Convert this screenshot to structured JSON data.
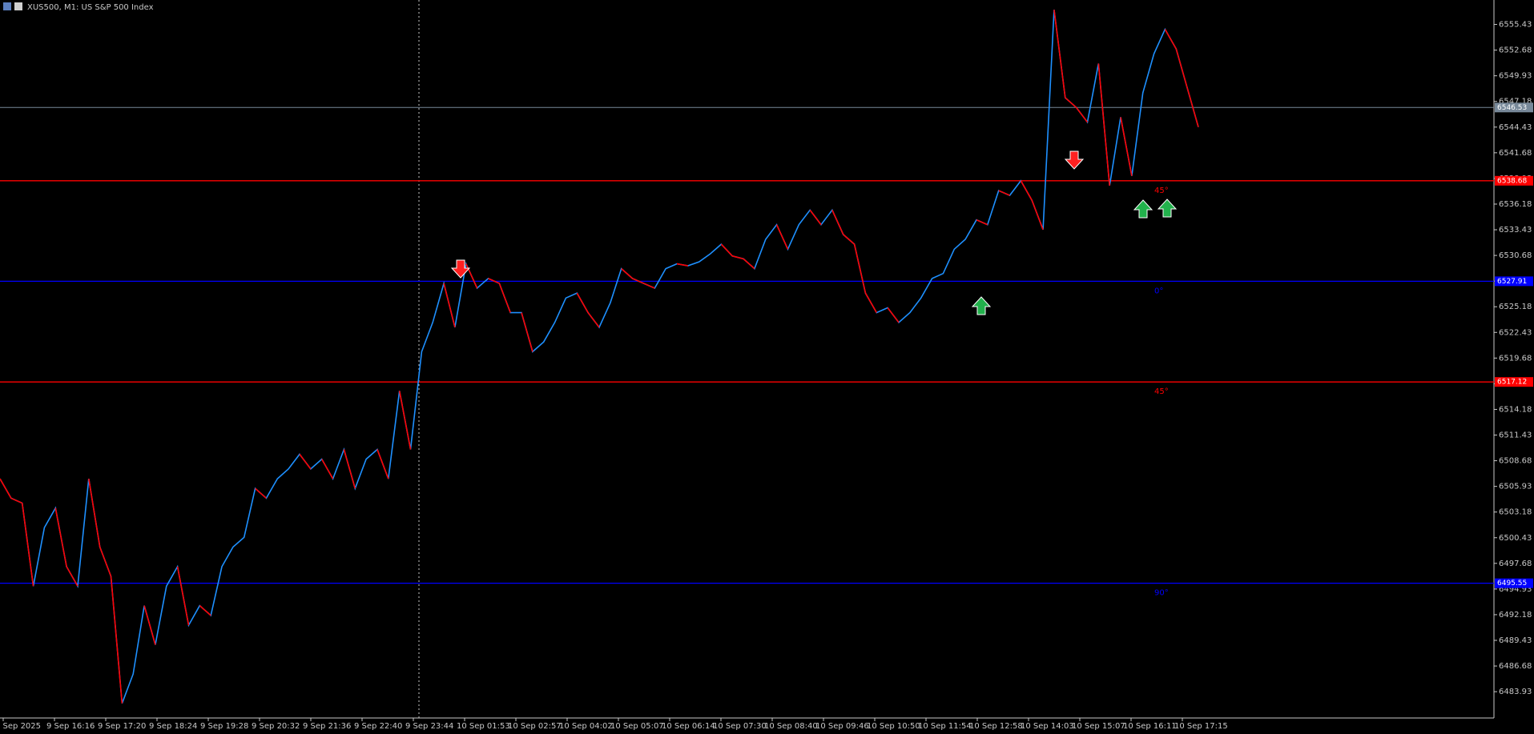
{
  "chart_data": {
    "type": "line",
    "title": "XUS500, M1:  US S&P 500 Index",
    "color": "#1e90ff",
    "down_color": "#ff0000",
    "values": [
      6506.75,
      6504.66,
      6504.14,
      6495.24,
      6501.52,
      6503.61,
      6497.33,
      6495.24,
      6506.75,
      6499.43,
      6496.29,
      6482.68,
      6485.82,
      6493.15,
      6488.96,
      6495.24,
      6497.33,
      6491.05,
      6493.15,
      6492.1,
      6497.33,
      6499.43,
      6500.47,
      6505.71,
      6504.66,
      6506.75,
      6507.8,
      6509.37,
      6507.8,
      6508.85,
      6506.75,
      6509.89,
      6505.71,
      6508.85,
      6509.89,
      6506.75,
      6516.17,
      6509.89,
      6520.36,
      6523.5,
      6527.69,
      6522.98,
      6529.78,
      6527.17,
      6528.21,
      6527.69,
      6524.55,
      6524.55,
      6520.36,
      6521.41,
      6523.5,
      6526.12,
      6526.64,
      6524.55,
      6522.98,
      6525.6,
      6529.26,
      6528.21,
      6527.69,
      6527.17,
      6529.26,
      6529.78,
      6529.57,
      6529.99,
      6530.83,
      6531.88,
      6530.62,
      6530.31,
      6529.26,
      6532.4,
      6533.97,
      6531.35,
      6533.97,
      6535.54,
      6533.97,
      6535.54,
      6532.92,
      6531.88,
      6526.64,
      6524.55,
      6525.07,
      6523.5,
      6524.55,
      6526.12,
      6528.21,
      6528.74,
      6531.35,
      6532.4,
      6534.49,
      6533.97,
      6537.63,
      6537.11,
      6538.68,
      6536.59,
      6533.45,
      6557.0,
      6547.58,
      6546.53,
      6544.96,
      6551.24,
      6538.16,
      6545.49,
      6539.2,
      6548.1,
      6552.29,
      6554.91,
      6552.81,
      6548.63,
      6544.44
    ],
    "time_labels": [
      "9 Sep 2025",
      "9 Sep 16:16",
      "9 Sep 17:20",
      "9 Sep 18:24",
      "9 Sep 19:28",
      "9 Sep 20:32",
      "9 Sep 21:36",
      "9 Sep 22:40",
      "9 Sep 23:44",
      "10 Sep 01:53",
      "10 Sep 02:57",
      "10 Sep 04:02",
      "10 Sep 05:07",
      "10 Sep 06:14",
      "10 Sep 07:30",
      "10 Sep 08:40",
      "10 Sep 09:46",
      "10 Sep 10:50",
      "10 Sep 11:54",
      "10 Sep 12:58",
      "10 Sep 14:03",
      "10 Sep 15:07",
      "10 Sep 16:11",
      "10 Sep 17:15"
    ],
    "ylim": [
      6481.11,
      6558.05
    ],
    "yticks": [
      6483.93,
      6486.68,
      6489.43,
      6492.18,
      6494.93,
      6497.68,
      6500.43,
      6503.18,
      6505.93,
      6508.68,
      6511.43,
      6514.18,
      6516.93,
      6519.68,
      6522.43,
      6525.18,
      6527.93,
      6530.68,
      6533.43,
      6536.18,
      6538.93,
      6541.68,
      6544.43,
      6547.18,
      6549.93,
      6552.68,
      6555.43
    ],
    "levels": [
      {
        "value": 6538.68,
        "color": "#ff0000",
        "angle": "45°"
      },
      {
        "value": 6527.91,
        "color": "#0000ff",
        "angle": "0°"
      },
      {
        "value": 6517.12,
        "color": "#ff0000",
        "angle": "45°"
      },
      {
        "value": 6495.55,
        "color": "#0000ff",
        "angle": "90°"
      }
    ],
    "current_price": 6546.53
  }
}
